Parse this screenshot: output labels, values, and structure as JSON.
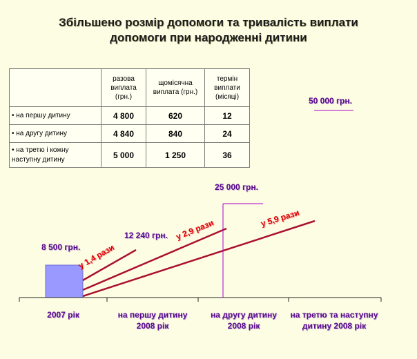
{
  "title": {
    "line1": "Збільшено розмір допомоги та тривалість виплати",
    "line2": "допомоги при народженні дитини"
  },
  "table": {
    "headers": [
      "разова виплата (грн.)",
      "щомісячна виплата (грн.)",
      "термін виплати (місяці)"
    ],
    "rows": [
      {
        "label": "• на першу дитину",
        "one_time": "4 800",
        "monthly": "620",
        "months": "12"
      },
      {
        "label": "• на другу дитину",
        "one_time": "4 840",
        "monthly": "840",
        "months": "24"
      },
      {
        "label": "• на третю і кожну наступну дитину",
        "one_time": "5 000",
        "monthly": "1 250",
        "months": "36"
      }
    ]
  },
  "value_labels": {
    "base": "8 500 грн.",
    "first": "12 240 грн.",
    "second": "25 000 грн.",
    "third": "50 000 грн."
  },
  "ratios": {
    "first": "у 1,4 рази",
    "second": "у 2,9 рази",
    "third": "у 5,9 рази"
  },
  "axis": {
    "categories": [
      "2007 рік",
      "на першу дитину 2008 рік",
      "на другу дитину 2008 рік",
      "на третю та наступну дитину 2008 рік"
    ]
  },
  "colors": {
    "bar": "#9999ff",
    "line": "#aa1030",
    "value_label": "#5a0a8a",
    "ratio": "#e00000",
    "marker": "#aa00cc"
  }
}
